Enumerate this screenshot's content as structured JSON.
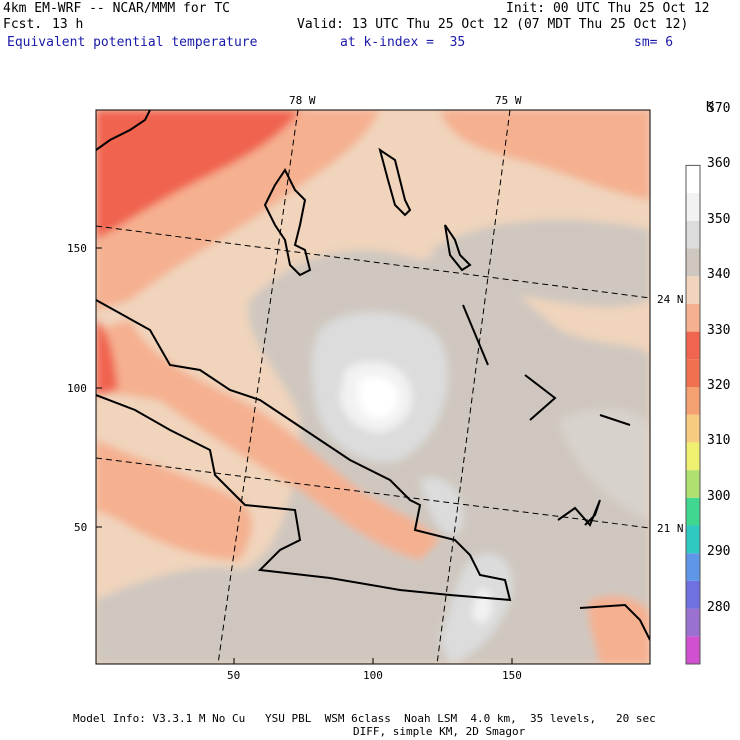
{
  "header": {
    "model": "4km EM-WRF -- NCAR/MMM for TC",
    "forecast_label": "Fcst.",
    "forecast_hours": "13 h",
    "init": "Init: 00 UTC Thu 25 Oct 12",
    "valid": "Valid: 13 UTC Thu 25 Oct 12 (07 MDT Thu 25 Oct 12)",
    "field": "Equivalent potential temperature",
    "level": "at k-index =  35",
    "smoothing": "sm= 6"
  },
  "map": {
    "top_labels": [
      "78 W",
      "75 W"
    ],
    "right_labels": [
      "24 N",
      "21 N"
    ],
    "left_ticks": [
      "150",
      "100",
      "50"
    ],
    "bottom_ticks": [
      "50",
      "100",
      "150"
    ]
  },
  "colorbar": {
    "unit": "K",
    "labels": [
      "280",
      "290",
      "300",
      "310",
      "320",
      "330",
      "340",
      "350",
      "360",
      "370"
    ],
    "colors": [
      "#d050d0",
      "#9a70d0",
      "#7070e0",
      "#5f96e8",
      "#30c8c0",
      "#40d890",
      "#b0e070",
      "#f0f070",
      "#f5cc80",
      "#f5a070",
      "#f07050",
      "#f06450",
      "#f5b090",
      "#f0d4bc",
      "#cfc7bf",
      "#dcdcdc",
      "#f2f2f2",
      "#ffffff"
    ]
  },
  "footer": {
    "line1": "Model Info: V3.3.1 M No Cu   YSU PBL  WSM 6class  Noah LSM  4.0 km,  35 levels,   20 sec",
    "line2": "DIFF, simple KM, 2D Smagor"
  }
}
